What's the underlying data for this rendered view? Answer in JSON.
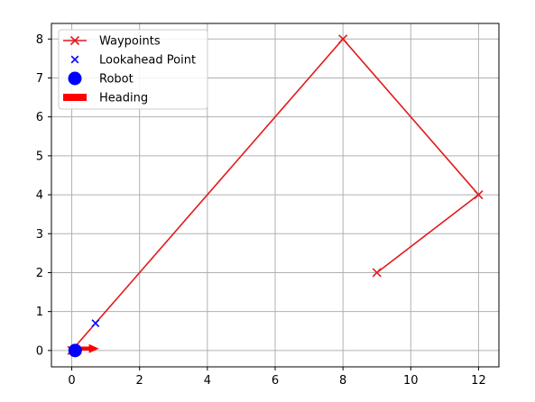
{
  "chart_data": {
    "type": "line",
    "xlim": [
      -0.6,
      12.6
    ],
    "ylim": [
      -0.42,
      8.4
    ],
    "xticks": [
      0,
      2,
      4,
      6,
      8,
      10,
      12
    ],
    "yticks": [
      0,
      1,
      2,
      3,
      4,
      5,
      6,
      7,
      8
    ],
    "grid": true,
    "legend": {
      "placement": "top-left",
      "entries": [
        "Waypoints",
        "Lookahead Point",
        "Robot",
        "Heading"
      ]
    },
    "series": [
      {
        "name": "Waypoints",
        "kind": "line-with-x-markers",
        "color": "#e31a1c",
        "points": [
          [
            0,
            0
          ],
          [
            8,
            8
          ],
          [
            12,
            4
          ],
          [
            9,
            2
          ]
        ]
      },
      {
        "name": "Lookahead Point",
        "kind": "x-marker",
        "color": "#0000ff",
        "points": [
          [
            0.7,
            0.7
          ]
        ]
      },
      {
        "name": "Robot",
        "kind": "circle-marker",
        "color": "#0000ff",
        "points": [
          [
            0.1,
            0.0
          ]
        ]
      },
      {
        "name": "Heading",
        "kind": "arrow",
        "color": "#ff0000",
        "start": [
          0.1,
          0.05
        ],
        "direction": [
          0.7,
          0.0
        ]
      }
    ]
  }
}
